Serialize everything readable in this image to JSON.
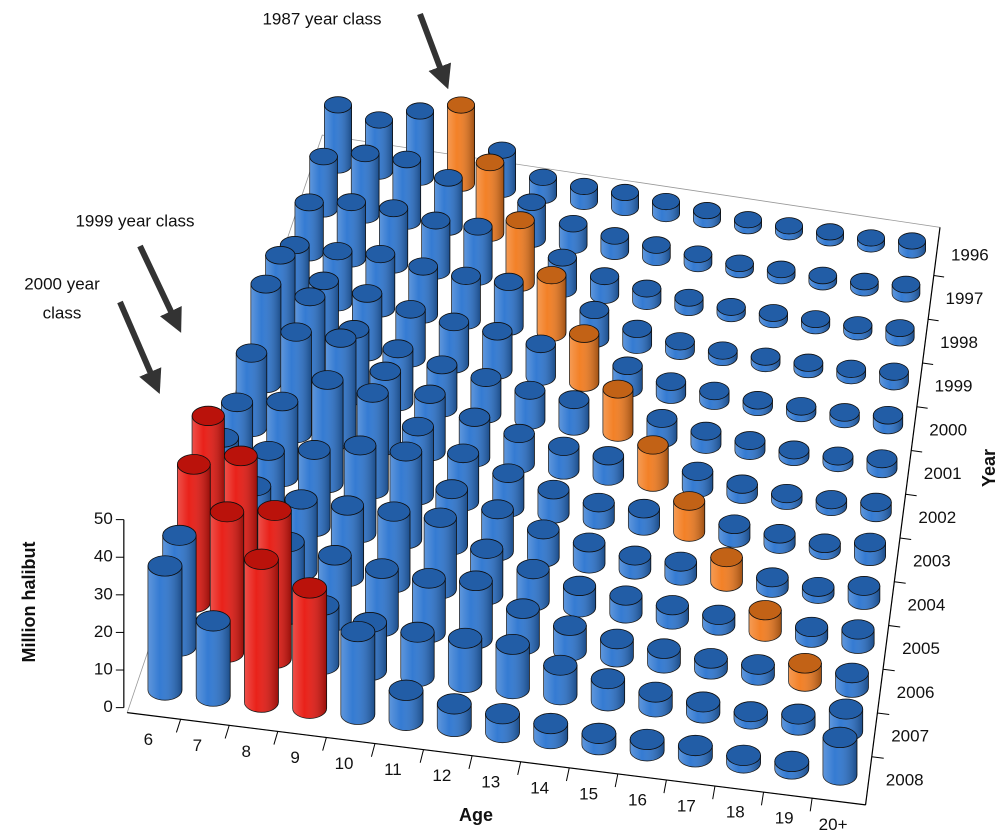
{
  "chart_data": {
    "type": "bar3d",
    "ylabel": "Million halibut",
    "xlabel": "Age",
    "depth_label": "Year",
    "ylim": [
      0,
      50
    ],
    "yticks": [
      0,
      10,
      20,
      30,
      40,
      50
    ],
    "annotations": [
      {
        "lines": [
          "1987 year class"
        ]
      },
      {
        "lines": [
          "1999 year class"
        ]
      },
      {
        "lines": [
          "2000 year",
          "class"
        ]
      }
    ],
    "categories": [
      "6",
      "7",
      "8",
      "9",
      "10",
      "11",
      "12",
      "13",
      "14",
      "15",
      "16",
      "17",
      "18",
      "19",
      "20+"
    ],
    "series": [
      {
        "name": "1996",
        "values": [
          20,
          17,
          22,
          26,
          13,
          6,
          5,
          5,
          4,
          3,
          2,
          2,
          2,
          2,
          3
        ],
        "colors": [
          "#2a74d0",
          "#2a74d0",
          "#2a74d0",
          "#f27a1c",
          "#2a74d0",
          "#2a74d0",
          "#2a74d0",
          "#2a74d0",
          "#2a74d0",
          "#2a74d0",
          "#2a74d0",
          "#2a74d0",
          "#2a74d0",
          "#2a74d0",
          "#2a74d0"
        ]
      },
      {
        "name": "1997",
        "values": [
          17,
          20,
          20,
          16,
          23,
          12,
          7,
          5,
          4,
          3,
          2,
          2,
          2,
          2,
          3
        ],
        "colors": [
          "#2a74d0",
          "#2a74d0",
          "#2a74d0",
          "#2a74d0",
          "#f27a1c",
          "#2a74d0",
          "#2a74d0",
          "#2a74d0",
          "#2a74d0",
          "#2a74d0",
          "#2a74d0",
          "#2a74d0",
          "#2a74d0",
          "#2a74d0",
          "#2a74d0"
        ]
      },
      {
        "name": "1998",
        "values": [
          16,
          18,
          18,
          16,
          16,
          20,
          10,
          6,
          4,
          3,
          2,
          2,
          2,
          2,
          3
        ],
        "colors": [
          "#2a74d0",
          "#2a74d0",
          "#2a74d0",
          "#2a74d0",
          "#2a74d0",
          "#f27a1c",
          "#2a74d0",
          "#2a74d0",
          "#2a74d0",
          "#2a74d0",
          "#2a74d0",
          "#2a74d0",
          "#2a74d0",
          "#2a74d0",
          "#2a74d0"
        ]
      },
      {
        "name": "1999",
        "values": [
          16,
          16,
          17,
          15,
          14,
          14,
          18,
          9,
          5,
          3,
          2,
          2,
          2,
          2,
          3
        ],
        "colors": [
          "#2a74d0",
          "#2a74d0",
          "#2a74d0",
          "#2a74d0",
          "#2a74d0",
          "#2a74d0",
          "#f27a1c",
          "#2a74d0",
          "#2a74d0",
          "#2a74d0",
          "#2a74d0",
          "#2a74d0",
          "#2a74d0",
          "#2a74d0",
          "#2a74d0"
        ]
      },
      {
        "name": "2000",
        "values": [
          26,
          20,
          18,
          15,
          13,
          12,
          10,
          15,
          7,
          4,
          3,
          2,
          2,
          2,
          3
        ],
        "colors": [
          "#2a74d0",
          "#2a74d0",
          "#2a74d0",
          "#2a74d0",
          "#2a74d0",
          "#2a74d0",
          "#2a74d0",
          "#f27a1c",
          "#2a74d0",
          "#2a74d0",
          "#2a74d0",
          "#2a74d0",
          "#2a74d0",
          "#2a74d0",
          "#2a74d0"
        ]
      },
      {
        "name": "2001",
        "values": [
          30,
          28,
          20,
          16,
          13,
          11,
          9,
          8,
          13,
          6,
          4,
          3,
          2,
          2,
          3
        ],
        "colors": [
          "#2a74d0",
          "#2a74d0",
          "#2a74d0",
          "#2a74d0",
          "#2a74d0",
          "#2a74d0",
          "#2a74d0",
          "#2a74d0",
          "#f27a1c",
          "#2a74d0",
          "#2a74d0",
          "#2a74d0",
          "#2a74d0",
          "#2a74d0",
          "#2a74d0"
        ]
      },
      {
        "name": "2002",
        "values": [
          22,
          30,
          30,
          22,
          17,
          12,
          9,
          7,
          6,
          11,
          5,
          3,
          2,
          2,
          3
        ],
        "colors": [
          "#2a74d0",
          "#2a74d0",
          "#2a74d0",
          "#2a74d0",
          "#2a74d0",
          "#2a74d0",
          "#2a74d0",
          "#2a74d0",
          "#2a74d0",
          "#f27a1c",
          "#2a74d0",
          "#2a74d0",
          "#2a74d0",
          "#2a74d0",
          "#2a74d0"
        ]
      },
      {
        "name": "2003",
        "values": [
          20,
          22,
          30,
          28,
          20,
          14,
          10,
          7,
          5,
          5,
          9,
          4,
          3,
          2,
          4
        ],
        "colors": [
          "#2a74d0",
          "#2a74d0",
          "#2a74d0",
          "#2a74d0",
          "#2a74d0",
          "#2a74d0",
          "#2a74d0",
          "#2a74d0",
          "#2a74d0",
          "#2a74d0",
          "#f27a1c",
          "#2a74d0",
          "#2a74d0",
          "#2a74d0",
          "#2a74d0"
        ]
      },
      {
        "name": "2004",
        "values": [
          22,
          20,
          22,
          25,
          25,
          16,
          12,
          8,
          6,
          4,
          4,
          7,
          3,
          2,
          4
        ],
        "colors": [
          "#2a74d0",
          "#2a74d0",
          "#2a74d0",
          "#2a74d0",
          "#2a74d0",
          "#2a74d0",
          "#2a74d0",
          "#2a74d0",
          "#2a74d0",
          "#2a74d0",
          "#2a74d0",
          "#f27a1c",
          "#2a74d0",
          "#2a74d0",
          "#2a74d0"
        ]
      },
      {
        "name": "2005",
        "values": [
          40,
          22,
          20,
          20,
          20,
          20,
          13,
          9,
          6,
          5,
          4,
          3,
          6,
          3,
          4
        ],
        "colors": [
          "#e8160e",
          "#2a74d0",
          "#2a74d0",
          "#2a74d0",
          "#2a74d0",
          "#2a74d0",
          "#2a74d0",
          "#2a74d0",
          "#2a74d0",
          "#2a74d0",
          "#2a74d0",
          "#2a74d0",
          "#f27a1c",
          "#2a74d0",
          "#2a74d0"
        ]
      },
      {
        "name": "2006",
        "values": [
          38,
          42,
          20,
          18,
          16,
          15,
          16,
          10,
          7,
          5,
          4,
          3,
          3,
          5,
          4
        ],
        "colors": [
          "#e8160e",
          "#e8160e",
          "#2a74d0",
          "#2a74d0",
          "#2a74d0",
          "#2a74d0",
          "#2a74d0",
          "#2a74d0",
          "#2a74d0",
          "#2a74d0",
          "#2a74d0",
          "#2a74d0",
          "#2a74d0",
          "#f27a1c",
          "#2a74d0"
        ]
      },
      {
        "name": "2007",
        "values": [
          30,
          38,
          40,
          16,
          13,
          12,
          12,
          12,
          8,
          6,
          4,
          3,
          2,
          3,
          6
        ],
        "colors": [
          "#2a74d0",
          "#e8160e",
          "#e8160e",
          "#2a74d0",
          "#2a74d0",
          "#2a74d0",
          "#2a74d0",
          "#2a74d0",
          "#2a74d0",
          "#2a74d0",
          "#2a74d0",
          "#2a74d0",
          "#2a74d0",
          "#2a74d0",
          "#2a74d0"
        ]
      },
      {
        "name": "2008",
        "values": [
          33,
          20,
          38,
          32,
          22,
          8,
          6,
          5,
          4,
          3,
          3,
          3,
          2,
          2,
          10
        ],
        "colors": [
          "#2a74d0",
          "#2a74d0",
          "#e8160e",
          "#e8160e",
          "#2a74d0",
          "#2a74d0",
          "#2a74d0",
          "#2a74d0",
          "#2a74d0",
          "#2a74d0",
          "#2a74d0",
          "#2a74d0",
          "#2a74d0",
          "#2a74d0",
          "#2a74d0"
        ]
      }
    ]
  }
}
